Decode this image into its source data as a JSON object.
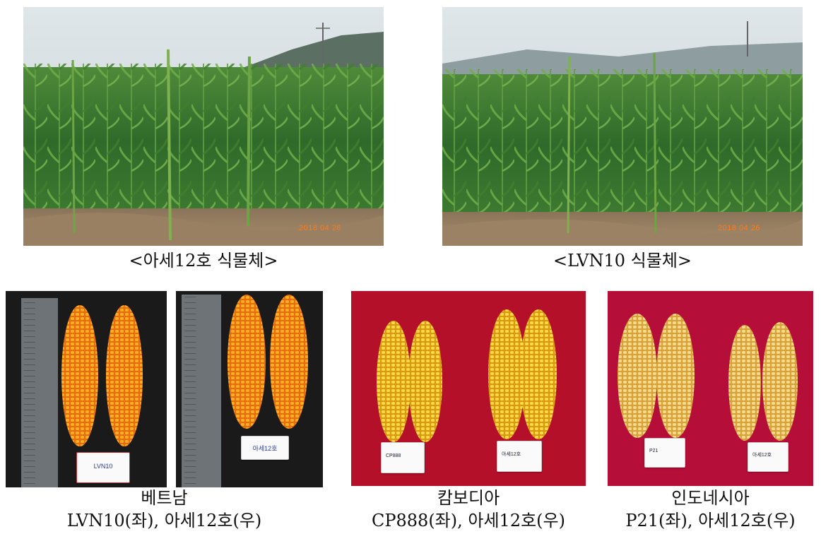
{
  "top_left": {
    "caption": "<아세12호  식물체>",
    "date_stamp": "2018  04  26"
  },
  "top_right": {
    "caption": "<LVN10  식물체>",
    "date_stamp": "2018  04  26"
  },
  "bottom_vietnam": {
    "country": "베트남",
    "caption": "LVN10(좌), 아세12호(우)",
    "card_left": "LVN10",
    "card_right": "아세12호"
  },
  "bottom_cambodia": {
    "country": "캄보디아",
    "caption": "CP888(좌), 아세12호(우)",
    "card_left": "CP888",
    "card_right": "아세12호"
  },
  "bottom_indonesia": {
    "country": "인도네시아",
    "caption": "P21(좌), 아세12호(우)",
    "card_left": "P21",
    "card_right": "아세12호"
  }
}
